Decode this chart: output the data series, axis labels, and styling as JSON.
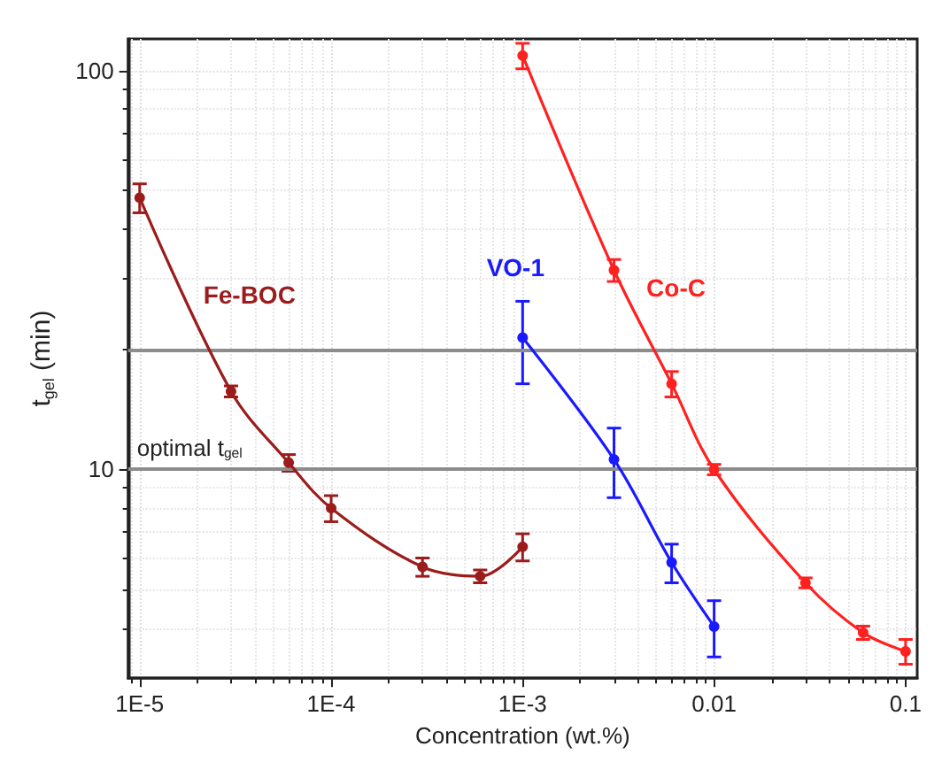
{
  "chart_data": {
    "type": "line",
    "xlabel": "Concentration (wt.%)",
    "ylabel": "t$_{gel}$ (min)",
    "log": "xy",
    "xlim": [
      8.7e-06,
      0.115
    ],
    "ylim": [
      3,
      120
    ],
    "xticks": [
      {
        "value": 1e-05,
        "label": "1E-5"
      },
      {
        "value": 0.0001,
        "label": "1E-4"
      },
      {
        "value": 0.001,
        "label": "1E-3"
      },
      0.01,
      0.1
    ],
    "yticks": [
      10,
      100
    ],
    "grid": true,
    "legend": false,
    "marker": "circle",
    "series": [
      {
        "name": "Fe-BOC",
        "color": "#9b1c1c",
        "x": [
          1e-05,
          3e-05,
          6e-05,
          0.0001,
          0.0003,
          0.0006,
          0.001
        ],
        "values": [
          48,
          15.7,
          10.4,
          8.0,
          5.7,
          5.4,
          6.4
        ],
        "errors": [
          4,
          0.5,
          0.5,
          0.6,
          0.3,
          0.2,
          0.5
        ]
      },
      {
        "name": "VO-1",
        "color": "#1a1aff",
        "x": [
          0.001,
          0.003,
          0.006,
          0.01
        ],
        "values": [
          21.4,
          10.6,
          5.85,
          4.04
        ],
        "errors": [
          5,
          2.1,
          0.65,
          0.65
        ]
      },
      {
        "name": "Co-C",
        "color": "#ff2020",
        "x": [
          0.001,
          0.003,
          0.006,
          0.01,
          0.03,
          0.06,
          0.1
        ],
        "values": [
          109,
          31.6,
          16.4,
          10,
          5.2,
          3.9,
          3.5
        ],
        "errors": [
          8,
          2,
          1.2,
          0.3,
          0.15,
          0.15,
          0.25
        ]
      }
    ],
    "ref_lines": [
      {
        "axis": "y",
        "value": 10,
        "label": "optimal t$_{gel}$",
        "color": "#8c8c8c"
      },
      {
        "axis": "y",
        "value": 20,
        "color": "#8c8c8c"
      }
    ]
  }
}
